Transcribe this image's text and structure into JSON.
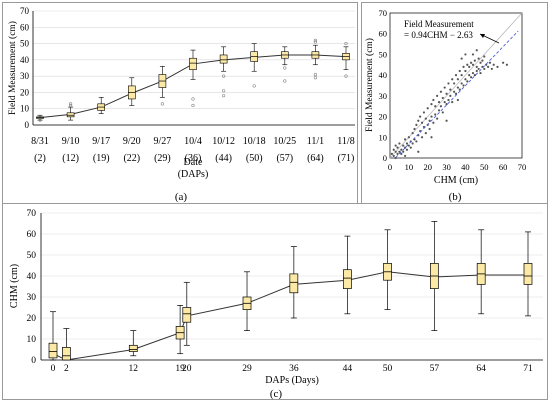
{
  "chart_data": [
    {
      "id": "a",
      "type": "box",
      "panel_label": "(a)",
      "xlabel": "Date",
      "xlabel2": "(DAPs)",
      "ylabel": "Field Measurement (cm)",
      "ylim": [
        0,
        70
      ],
      "yticks": [
        0,
        10,
        20,
        30,
        40,
        50,
        60,
        70
      ],
      "categories": [
        {
          "date": "8/31",
          "dap": "(2)"
        },
        {
          "date": "9/10",
          "dap": "(12)"
        },
        {
          "date": "9/17",
          "dap": "(19)"
        },
        {
          "date": "9/20",
          "dap": "(22)"
        },
        {
          "date": "9/27",
          "dap": "(29)"
        },
        {
          "date": "10/4",
          "dap": "(36)"
        },
        {
          "date": "10/12",
          "dap": "(44)"
        },
        {
          "date": "10/18",
          "dap": "(50)"
        },
        {
          "date": "10/25",
          "dap": "(57)"
        },
        {
          "date": "11/1",
          "dap": "(64)"
        },
        {
          "date": "11/8",
          "dap": "(71)"
        }
      ],
      "boxes": [
        {
          "min": 3,
          "q1": 4,
          "median": 4.5,
          "q3": 5,
          "max": 6,
          "mean": 4.5,
          "outliers": [
            3
          ]
        },
        {
          "min": 3,
          "q1": 5,
          "median": 6,
          "q3": 7.5,
          "max": 11,
          "mean": 6.5,
          "outliers": [
            12,
            13
          ]
        },
        {
          "min": 7,
          "q1": 9,
          "median": 11,
          "q3": 13,
          "max": 17,
          "mean": 11,
          "outliers": []
        },
        {
          "min": 12,
          "q1": 16,
          "median": 20,
          "q3": 24,
          "max": 29,
          "mean": 19.5,
          "outliers": []
        },
        {
          "min": 17,
          "q1": 23,
          "median": 27,
          "q3": 31,
          "max": 36,
          "mean": 27,
          "outliers": [
            13
          ]
        },
        {
          "min": 28,
          "q1": 34,
          "median": 38,
          "q3": 41,
          "max": 46,
          "mean": 37.5,
          "outliers": [
            16,
            12
          ]
        },
        {
          "min": 33,
          "q1": 38,
          "median": 40,
          "q3": 43,
          "max": 48,
          "mean": 40,
          "outliers": [
            30,
            21,
            18
          ]
        },
        {
          "min": 33,
          "q1": 39,
          "median": 42,
          "q3": 45,
          "max": 50,
          "mean": 41.5,
          "outliers": [
            24
          ]
        },
        {
          "min": 37,
          "q1": 41,
          "median": 43,
          "q3": 45,
          "max": 48,
          "mean": 43,
          "outliers": [
            27,
            35
          ]
        },
        {
          "min": 37,
          "q1": 41,
          "median": 43,
          "q3": 45,
          "max": 49,
          "mean": 43,
          "outliers": [
            52,
            51,
            29,
            31
          ]
        },
        {
          "min": 34,
          "q1": 40,
          "median": 42,
          "q3": 44,
          "max": 48,
          "mean": 42,
          "outliers": [
            50,
            30
          ]
        }
      ]
    },
    {
      "id": "b",
      "type": "scatter",
      "panel_label": "(b)",
      "xlabel": "CHM (cm)",
      "ylabel": "Field Measurement (cm)",
      "xlim": [
        0,
        70
      ],
      "ylim": [
        0,
        70
      ],
      "xticks": [
        0,
        10,
        20,
        30,
        40,
        50,
        60,
        70
      ],
      "yticks": [
        0,
        10,
        20,
        30,
        40,
        50,
        60,
        70
      ],
      "annotation": [
        "Field Measurement",
        "= 0.94CHM − 2.63"
      ],
      "fit": {
        "slope": 0.94,
        "intercept": -2.63
      },
      "points": [
        [
          1,
          2
        ],
        [
          2,
          1
        ],
        [
          2,
          4
        ],
        [
          3,
          3
        ],
        [
          3,
          6
        ],
        [
          4,
          2
        ],
        [
          4,
          5
        ],
        [
          5,
          3
        ],
        [
          5,
          7
        ],
        [
          6,
          4
        ],
        [
          6,
          2
        ],
        [
          7,
          6
        ],
        [
          7,
          3
        ],
        [
          8,
          5
        ],
        [
          8,
          9
        ],
        [
          9,
          4
        ],
        [
          9,
          7
        ],
        [
          10,
          6
        ],
        [
          10,
          10
        ],
        [
          11,
          5
        ],
        [
          11,
          8
        ],
        [
          12,
          7
        ],
        [
          12,
          12
        ],
        [
          13,
          9
        ],
        [
          13,
          14
        ],
        [
          14,
          8
        ],
        [
          14,
          16
        ],
        [
          15,
          11
        ],
        [
          15,
          18
        ],
        [
          16,
          13
        ],
        [
          16,
          20
        ],
        [
          17,
          10
        ],
        [
          17,
          17
        ],
        [
          18,
          15
        ],
        [
          18,
          22
        ],
        [
          19,
          12
        ],
        [
          19,
          19
        ],
        [
          20,
          16
        ],
        [
          20,
          24
        ],
        [
          21,
          18
        ],
        [
          21,
          14
        ],
        [
          22,
          20
        ],
        [
          22,
          26
        ],
        [
          23,
          17
        ],
        [
          23,
          28
        ],
        [
          24,
          21
        ],
        [
          24,
          25
        ],
        [
          25,
          19
        ],
        [
          25,
          30
        ],
        [
          26,
          23
        ],
        [
          26,
          27
        ],
        [
          27,
          25
        ],
        [
          27,
          32
        ],
        [
          28,
          22
        ],
        [
          28,
          29
        ],
        [
          29,
          27
        ],
        [
          29,
          34
        ],
        [
          30,
          26
        ],
        [
          30,
          31
        ],
        [
          31,
          28
        ],
        [
          31,
          36
        ],
        [
          32,
          30
        ],
        [
          32,
          33
        ],
        [
          33,
          27
        ],
        [
          33,
          38
        ],
        [
          34,
          32
        ],
        [
          34,
          36
        ],
        [
          35,
          31
        ],
        [
          35,
          40
        ],
        [
          36,
          34
        ],
        [
          36,
          38
        ],
        [
          37,
          33
        ],
        [
          37,
          42
        ],
        [
          38,
          36
        ],
        [
          38,
          40
        ],
        [
          39,
          35
        ],
        [
          39,
          44
        ],
        [
          40,
          38
        ],
        [
          40,
          42
        ],
        [
          41,
          37
        ],
        [
          41,
          45
        ],
        [
          42,
          40
        ],
        [
          42,
          44
        ],
        [
          43,
          39
        ],
        [
          43,
          46
        ],
        [
          44,
          41
        ],
        [
          44,
          45
        ],
        [
          45,
          40
        ],
        [
          45,
          47
        ],
        [
          46,
          42
        ],
        [
          46,
          44
        ],
        [
          47,
          43
        ],
        [
          47,
          48
        ],
        [
          48,
          41
        ],
        [
          48,
          46
        ],
        [
          49,
          44
        ],
        [
          49,
          47
        ],
        [
          50,
          43
        ],
        [
          50,
          49
        ],
        [
          51,
          45
        ],
        [
          52,
          44
        ],
        [
          53,
          46
        ],
        [
          54,
          43
        ],
        [
          55,
          45
        ],
        [
          57,
          44
        ],
        [
          60,
          46
        ],
        [
          62,
          45
        ],
        [
          3,
          0
        ],
        [
          8,
          1
        ],
        [
          15,
          3
        ],
        [
          22,
          10
        ],
        [
          30,
          18
        ],
        [
          36,
          28
        ],
        [
          44,
          50
        ],
        [
          40,
          50
        ],
        [
          46,
          52
        ],
        [
          38,
          48
        ]
      ]
    },
    {
      "id": "c",
      "type": "box",
      "panel_label": "(c)",
      "xlabel": "DAPs (Days)",
      "ylabel": "CHM (cm)",
      "xlim": [
        -1,
        74
      ],
      "ylim": [
        0,
        70
      ],
      "yticks": [
        0,
        10,
        20,
        30,
        40,
        50,
        60,
        70
      ],
      "xticks": [
        0,
        2,
        12,
        19,
        20,
        29,
        36,
        44,
        50,
        57,
        64,
        71
      ],
      "boxes": [
        {
          "x": 0,
          "min": 0,
          "q1": 1,
          "median": 4,
          "q3": 8,
          "max": 23,
          "mean": 3
        },
        {
          "x": 2,
          "min": 0,
          "q1": 0,
          "median": 2,
          "q3": 6,
          "max": 15,
          "mean": 0
        },
        {
          "x": 12,
          "min": 2,
          "q1": 4,
          "median": 5,
          "q3": 7,
          "max": 14,
          "mean": 5
        },
        {
          "x": 19,
          "min": 3,
          "q1": 10,
          "median": 13,
          "q3": 16,
          "max": 26,
          "mean": 13
        },
        {
          "x": 20,
          "min": 7,
          "q1": 18,
          "median": 22,
          "q3": 25,
          "max": 37,
          "mean": 21
        },
        {
          "x": 29,
          "min": 14,
          "q1": 24,
          "median": 27,
          "q3": 30,
          "max": 42,
          "mean": 27
        },
        {
          "x": 36,
          "min": 20,
          "q1": 32,
          "median": 37,
          "q3": 41,
          "max": 54,
          "mean": 36
        },
        {
          "x": 44,
          "min": 22,
          "q1": 34,
          "median": 39,
          "q3": 43,
          "max": 59,
          "mean": 38
        },
        {
          "x": 50,
          "min": 24,
          "q1": 38,
          "median": 42,
          "q3": 46,
          "max": 62,
          "mean": 42
        },
        {
          "x": 57,
          "min": 14,
          "q1": 34,
          "median": 40,
          "q3": 46,
          "max": 66,
          "mean": 39.5
        },
        {
          "x": 64,
          "min": 22,
          "q1": 36,
          "median": 41,
          "q3": 46,
          "max": 62,
          "mean": 40.5
        },
        {
          "x": 71,
          "min": 21,
          "q1": 36,
          "median": 40,
          "q3": 46,
          "max": 61,
          "mean": 40.5
        }
      ]
    }
  ],
  "colors": {
    "box_fill": "#fde9a6",
    "box_stroke": "#000000",
    "line": "#333333",
    "scatter_point": "#555555",
    "fit_line": "#4a5fd8",
    "ref_line": "#bbbbbb",
    "outlier": "#888888"
  }
}
